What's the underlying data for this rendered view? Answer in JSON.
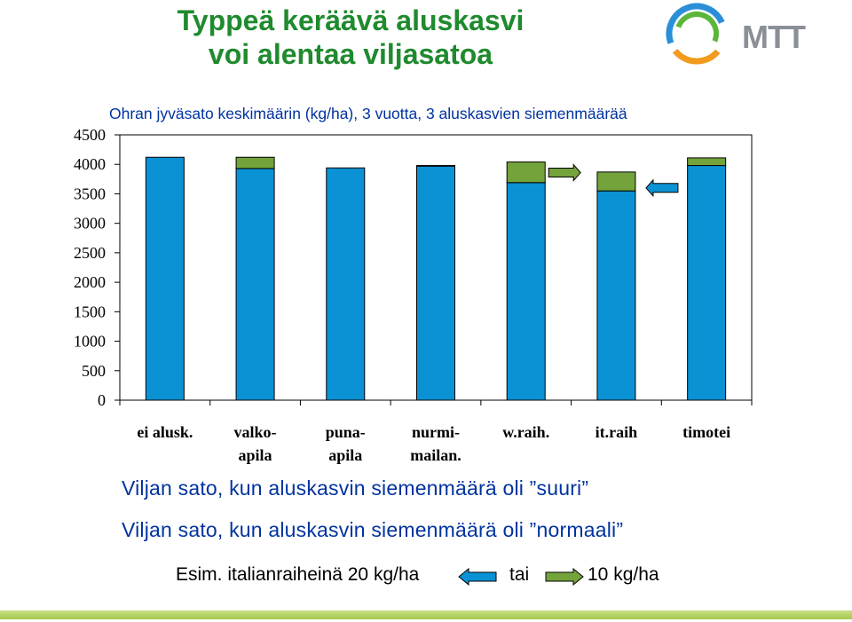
{
  "title_line1": "Typpeä keräävä aluskasvi",
  "title_line2": "voi alentaa viljasatoa",
  "brand": "MTT",
  "colors": {
    "bar_base": "#0a92d4",
    "bar_top": "#73a33a",
    "title": "#1f8a2e",
    "subtitle": "#0033a0"
  },
  "chart_data": {
    "type": "bar",
    "stacked": true,
    "title": "Ohran jyväsato keskimäärin (kg/ha), 3 vuotta, 3 aluskasvien siemenmäärää",
    "xlabel": "",
    "ylabel": "",
    "ylim": [
      0,
      4500
    ],
    "yticks": [
      0,
      500,
      1000,
      1500,
      2000,
      2500,
      3000,
      3500,
      4000,
      4500
    ],
    "categories": [
      [
        "ei alusk."
      ],
      [
        "valko-",
        "apila"
      ],
      [
        "puna-",
        "apila"
      ],
      [
        "nurmi-",
        "mailan."
      ],
      [
        "w.raih."
      ],
      [
        "it.raih"
      ],
      [
        "timotei"
      ]
    ],
    "series": [
      {
        "values": [
          4120,
          3930,
          3940,
          3970,
          3690,
          3550,
          3980
        ]
      },
      {
        "values": [
          0,
          190,
          0,
          10,
          350,
          320,
          130
        ]
      }
    ],
    "annotations": [
      {
        "type": "arrow-right",
        "color": "#73a33a",
        "category_index": 4,
        "value": 3860
      },
      {
        "type": "arrow-left",
        "color": "#0a92d4",
        "category_index": 5,
        "value": 3600
      }
    ],
    "grid": false,
    "legend": "none"
  },
  "notes": {
    "suuri": "Viljan sato, kun aluskasvin siemenmäärä oli ”suuri”",
    "normaali": "Viljan sato, kun aluskasvin siemenmäärä oli ”normaali”"
  },
  "example": {
    "prefix": "Esim. italianraiheinä 20 kg/ha",
    "middle": "tai",
    "suffix": "10 kg/ha"
  }
}
